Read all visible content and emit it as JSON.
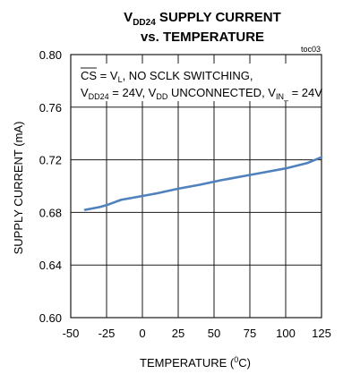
{
  "chart_data": {
    "type": "line",
    "title": {
      "line1_prefix": "V",
      "line1_sub": "DD24",
      "line1_rest": " SUPPLY CURRENT",
      "line2": "vs. TEMPERATURE"
    },
    "figure_tag": "toc03",
    "xlabel": {
      "text": "TEMPERATURE (",
      "sup": "0",
      "rest": "C)"
    },
    "ylabel": "SUPPLY CURRENT (mA)",
    "xlim": [
      -50,
      125
    ],
    "ylim": [
      0.6,
      0.8
    ],
    "x_ticks": [
      "-50",
      "-25",
      "0",
      "25",
      "50",
      "75",
      "100",
      "125"
    ],
    "y_ticks": [
      "0.60",
      "0.64",
      "0.68",
      "0.72",
      "0.76",
      "0.80"
    ],
    "grid": true,
    "annotation": {
      "line1": {
        "cs": "CS",
        "mid": " = V",
        "sub": "L",
        "rest": ", NO SCLK SWITCHING,"
      },
      "line2": {
        "a": "V",
        "a_sub": "DD24",
        "b": " = 24V, V",
        "b_sub": "DD",
        "c": " UNCONNECTED, V",
        "c_sub": "IN_",
        "d": " = 24V"
      }
    },
    "series": [
      {
        "color": "#4f81bd",
        "x": [
          -40,
          -30,
          -25,
          -15,
          -5,
          10,
          25,
          40,
          55,
          70,
          85,
          100,
          115,
          125
        ],
        "y": [
          0.682,
          0.684,
          0.6855,
          0.6895,
          0.6915,
          0.6945,
          0.698,
          0.701,
          0.7045,
          0.7075,
          0.7105,
          0.7135,
          0.7175,
          0.722
        ]
      }
    ]
  }
}
